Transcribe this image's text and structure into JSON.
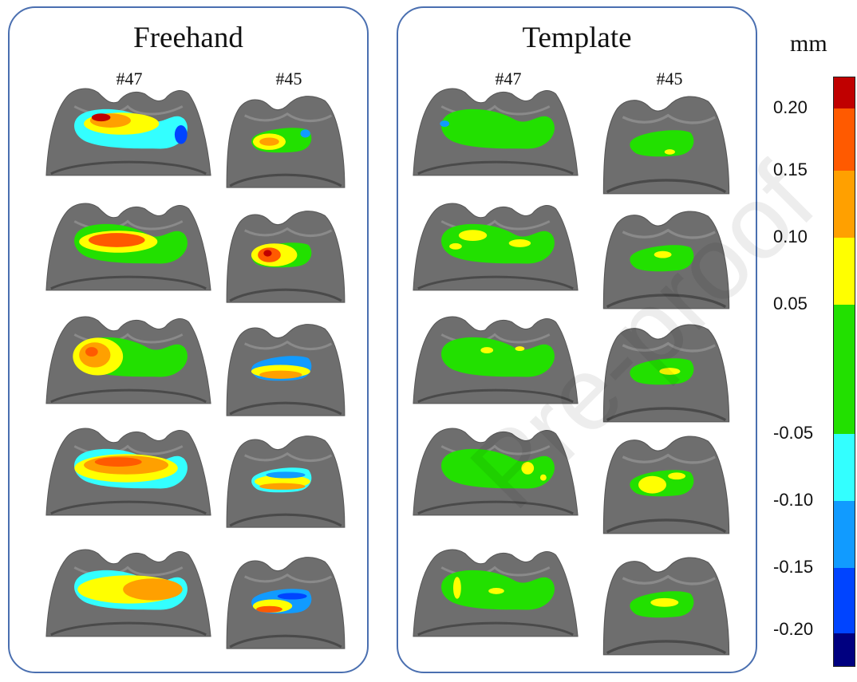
{
  "panels": {
    "freehand": {
      "title": "Freehand",
      "col_left": "#47",
      "col_right": "#45"
    },
    "template": {
      "title": "Template",
      "col_left": "#47",
      "col_right": "#45"
    }
  },
  "colorbar": {
    "unit": "mm",
    "ticks": [
      "0.20",
      "0.15",
      "0.10",
      "0.05",
      "-0.05",
      "-0.10",
      "-0.15",
      "-0.20"
    ],
    "segments": [
      {
        "from": 0.2,
        "to": 0.25,
        "color": "#c00000"
      },
      {
        "from": 0.15,
        "to": 0.2,
        "color": "#ff5a00"
      },
      {
        "from": 0.1,
        "to": 0.15,
        "color": "#ffa000"
      },
      {
        "from": 0.05,
        "to": 0.1,
        "color": "#ffff00"
      },
      {
        "from": -0.05,
        "to": 0.05,
        "color": "#22e000"
      },
      {
        "from": -0.1,
        "to": -0.05,
        "color": "#33ffff"
      },
      {
        "from": -0.15,
        "to": -0.1,
        "color": "#119bff"
      },
      {
        "from": -0.2,
        "to": -0.15,
        "color": "#0044ff"
      },
      {
        "from": -0.25,
        "to": -0.2,
        "color": "#000080"
      }
    ]
  },
  "watermark": "Pre-proof",
  "colors": {
    "tooth": "#6e6e6e",
    "green": "#22e000",
    "yellow": "#ffff00",
    "orange": "#ffa000",
    "red": "#ff5a00",
    "darkred": "#c00000",
    "cyan": "#33ffff",
    "lightblue": "#119bff",
    "blue": "#0044ff"
  }
}
